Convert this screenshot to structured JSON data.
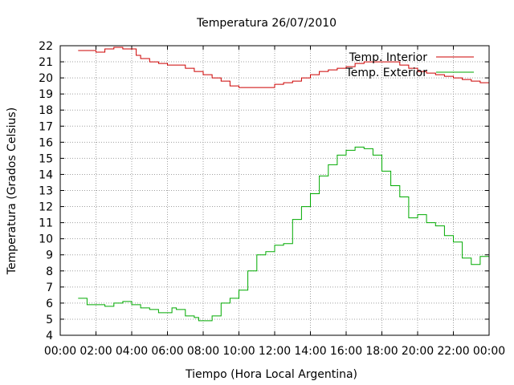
{
  "chart_data": {
    "type": "line",
    "title": "Temperatura 26/07/2010",
    "xlabel": "Tiempo (Hora Local Argentina)",
    "ylabel": "Temperatura (Grados Celsius)",
    "xlim": [
      0,
      24
    ],
    "ylim": [
      4,
      22
    ],
    "grid": true,
    "legend_position": "top-right",
    "x_ticks": [
      "00:00",
      "02:00",
      "04:00",
      "06:00",
      "08:00",
      "10:00",
      "12:00",
      "14:00",
      "16:00",
      "18:00",
      "20:00",
      "22:00",
      "00:00"
    ],
    "y_ticks": [
      4,
      5,
      6,
      7,
      8,
      9,
      10,
      11,
      12,
      13,
      14,
      15,
      16,
      17,
      18,
      19,
      20,
      21,
      22
    ],
    "series": [
      {
        "name": "Temp. Interior",
        "color": "#cc0000",
        "points": [
          [
            "01:00",
            21.7
          ],
          [
            "01:30",
            21.7
          ],
          [
            "02:00",
            21.6
          ],
          [
            "02:30",
            21.8
          ],
          [
            "03:00",
            21.9
          ],
          [
            "03:30",
            21.8
          ],
          [
            "04:00",
            21.8
          ],
          [
            "04:15",
            21.4
          ],
          [
            "04:30",
            21.2
          ],
          [
            "05:00",
            21.0
          ],
          [
            "05:30",
            20.9
          ],
          [
            "06:00",
            20.8
          ],
          [
            "06:30",
            20.8
          ],
          [
            "07:00",
            20.6
          ],
          [
            "07:30",
            20.4
          ],
          [
            "08:00",
            20.2
          ],
          [
            "08:30",
            20.0
          ],
          [
            "09:00",
            19.8
          ],
          [
            "09:30",
            19.5
          ],
          [
            "10:00",
            19.4
          ],
          [
            "10:30",
            19.4
          ],
          [
            "11:00",
            19.4
          ],
          [
            "11:30",
            19.4
          ],
          [
            "12:00",
            19.6
          ],
          [
            "12:30",
            19.7
          ],
          [
            "13:00",
            19.8
          ],
          [
            "13:30",
            20.0
          ],
          [
            "14:00",
            20.2
          ],
          [
            "14:30",
            20.4
          ],
          [
            "15:00",
            20.5
          ],
          [
            "15:30",
            20.6
          ],
          [
            "16:00",
            20.7
          ],
          [
            "16:30",
            20.9
          ],
          [
            "17:00",
            21.0
          ],
          [
            "17:30",
            21.0
          ],
          [
            "18:00",
            21.0
          ],
          [
            "18:30",
            21.0
          ],
          [
            "19:00",
            20.8
          ],
          [
            "19:30",
            20.6
          ],
          [
            "20:00",
            20.4
          ],
          [
            "20:30",
            20.3
          ],
          [
            "21:00",
            20.2
          ],
          [
            "21:30",
            20.1
          ],
          [
            "22:00",
            20.0
          ],
          [
            "22:30",
            19.9
          ],
          [
            "23:00",
            19.8
          ],
          [
            "23:30",
            19.7
          ],
          [
            "24:00",
            19.7
          ]
        ]
      },
      {
        "name": "Temp. Exterior",
        "color": "#00aa00",
        "points": [
          [
            "01:00",
            6.3
          ],
          [
            "01:30",
            5.9
          ],
          [
            "02:00",
            5.9
          ],
          [
            "02:30",
            5.8
          ],
          [
            "03:00",
            6.0
          ],
          [
            "03:30",
            6.1
          ],
          [
            "04:00",
            5.9
          ],
          [
            "04:30",
            5.7
          ],
          [
            "05:00",
            5.6
          ],
          [
            "05:30",
            5.4
          ],
          [
            "06:00",
            5.4
          ],
          [
            "06:15",
            5.7
          ],
          [
            "06:30",
            5.6
          ],
          [
            "07:00",
            5.2
          ],
          [
            "07:30",
            5.1
          ],
          [
            "07:45",
            4.9
          ],
          [
            "08:00",
            4.9
          ],
          [
            "08:30",
            5.2
          ],
          [
            "09:00",
            6.0
          ],
          [
            "09:30",
            6.3
          ],
          [
            "10:00",
            6.8
          ],
          [
            "10:30",
            8.0
          ],
          [
            "11:00",
            9.0
          ],
          [
            "11:30",
            9.2
          ],
          [
            "12:00",
            9.6
          ],
          [
            "12:30",
            9.7
          ],
          [
            "13:00",
            11.2
          ],
          [
            "13:30",
            12.0
          ],
          [
            "14:00",
            12.8
          ],
          [
            "14:30",
            13.9
          ],
          [
            "15:00",
            14.6
          ],
          [
            "15:30",
            15.2
          ],
          [
            "16:00",
            15.5
          ],
          [
            "16:30",
            15.7
          ],
          [
            "17:00",
            15.6
          ],
          [
            "17:30",
            15.2
          ],
          [
            "18:00",
            14.2
          ],
          [
            "18:30",
            13.3
          ],
          [
            "19:00",
            12.6
          ],
          [
            "19:30",
            11.3
          ],
          [
            "20:00",
            11.5
          ],
          [
            "20:30",
            11.0
          ],
          [
            "21:00",
            10.8
          ],
          [
            "21:30",
            10.2
          ],
          [
            "22:00",
            9.8
          ],
          [
            "22:30",
            8.8
          ],
          [
            "23:00",
            8.4
          ],
          [
            "23:30",
            8.9
          ],
          [
            "24:00",
            9.2
          ]
        ]
      }
    ]
  }
}
